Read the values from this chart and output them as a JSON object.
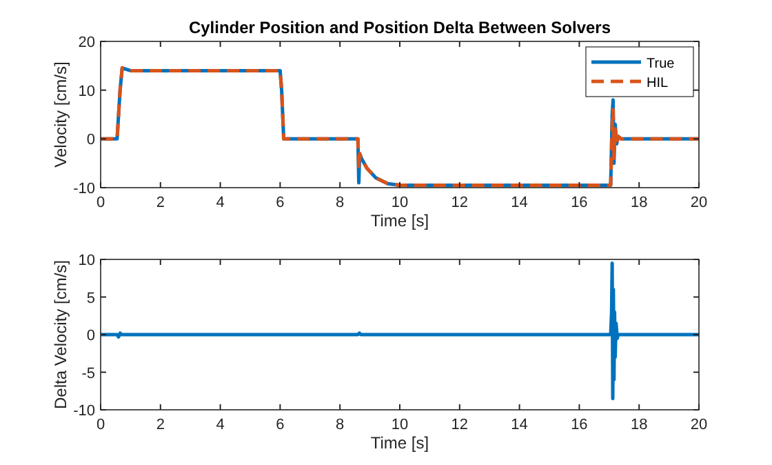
{
  "chart_data": [
    {
      "type": "line",
      "title": "Cylinder Position and Position Delta Between Solvers",
      "xlabel": "Time [s]",
      "ylabel": "Velocity [cm/s]",
      "xlim": [
        0,
        20
      ],
      "xticks": [
        0,
        2,
        4,
        6,
        8,
        10,
        12,
        14,
        16,
        18,
        20
      ],
      "ylim": [
        -10,
        20
      ],
      "yticks": [
        -10,
        0,
        10,
        20
      ],
      "legend": "top right",
      "series": [
        {
          "name": "True",
          "color": "#0072bd",
          "line_style": "solid",
          "x": [
            0,
            0.55,
            0.6,
            0.65,
            0.72,
            0.85,
            1.0,
            6.0,
            6.05,
            6.12,
            8.6,
            8.63,
            8.66,
            8.72,
            8.9,
            9.2,
            9.6,
            10,
            17.05,
            17.1,
            17.13,
            17.16,
            17.2,
            17.25,
            17.3,
            17.4,
            20
          ],
          "values": [
            0,
            0,
            5,
            10,
            14.5,
            14.3,
            14,
            14,
            10,
            0,
            0,
            -9,
            -3,
            -4,
            -6,
            -8,
            -9.2,
            -9.5,
            -9.5,
            5,
            8,
            -5,
            3,
            -1,
            0.5,
            0,
            0
          ]
        },
        {
          "name": "HIL",
          "color": "#d95319",
          "line_style": "dashed",
          "x": [
            0,
            0.55,
            0.6,
            0.65,
            0.72,
            0.85,
            1.0,
            6.0,
            6.05,
            6.12,
            8.6,
            8.63,
            8.66,
            8.72,
            8.9,
            9.2,
            9.6,
            10,
            17.05,
            17.1,
            17.13,
            17.16,
            17.2,
            17.25,
            17.3,
            17.4,
            20
          ],
          "values": [
            0,
            0,
            5,
            10,
            14.6,
            14.3,
            14,
            14,
            10,
            0,
            0,
            -6,
            -3,
            -4,
            -6,
            -8,
            -9.2,
            -9.5,
            -9.5,
            3,
            6,
            -4,
            2,
            -1,
            0.5,
            0,
            0
          ]
        }
      ]
    },
    {
      "type": "line",
      "xlabel": "Time [s]",
      "ylabel": "Delta Velocity [cm/s]",
      "xlim": [
        0,
        20
      ],
      "xticks": [
        0,
        2,
        4,
        6,
        8,
        10,
        12,
        14,
        16,
        18,
        20
      ],
      "ylim": [
        -10,
        10
      ],
      "yticks": [
        -10,
        -5,
        0,
        5,
        10
      ],
      "series": [
        {
          "color": "#0072bd",
          "line_style": "solid",
          "x": [
            0,
            0.55,
            0.6,
            0.65,
            0.7,
            8.6,
            8.65,
            8.7,
            17.05,
            17.08,
            17.1,
            17.12,
            17.14,
            17.16,
            17.18,
            17.2,
            17.23,
            17.27,
            17.3,
            20
          ],
          "values": [
            0,
            0,
            -0.3,
            0.2,
            0,
            0,
            0.2,
            0,
            0,
            3,
            9.5,
            -8.5,
            6,
            -6,
            3,
            -3,
            1.5,
            -0.5,
            0,
            0
          ]
        }
      ]
    }
  ]
}
